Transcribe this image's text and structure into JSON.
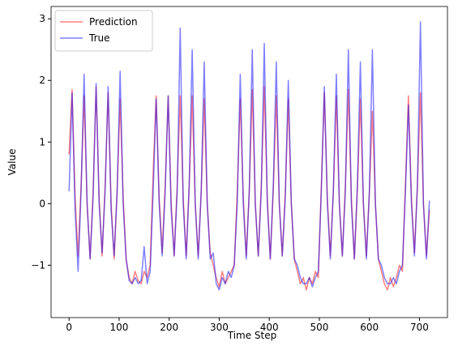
{
  "chart_data": {
    "type": "line",
    "xlabel": "Time Step",
    "ylabel": "Value",
    "x": [
      0,
      6,
      12,
      18,
      24,
      30,
      36,
      42,
      48,
      54,
      60,
      66,
      72,
      78,
      84,
      90,
      96,
      102,
      108,
      114,
      120,
      126,
      132,
      138,
      144,
      150,
      156,
      162,
      168,
      174,
      180,
      186,
      192,
      198,
      204,
      210,
      216,
      222,
      228,
      234,
      240,
      246,
      252,
      258,
      264,
      270,
      276,
      282,
      288,
      294,
      300,
      306,
      312,
      318,
      324,
      330,
      336,
      342,
      348,
      354,
      360,
      366,
      372,
      378,
      384,
      390,
      396,
      402,
      408,
      414,
      420,
      426,
      432,
      438,
      444,
      450,
      456,
      462,
      468,
      474,
      480,
      486,
      492,
      498,
      504,
      510,
      516,
      522,
      528,
      534,
      540,
      546,
      552,
      558,
      564,
      570,
      576,
      582,
      588,
      594,
      600,
      606,
      612,
      618,
      624,
      630,
      636,
      642,
      648,
      654,
      660,
      666,
      672,
      678,
      684,
      690,
      696,
      702,
      708,
      714,
      720
    ],
    "series": [
      {
        "name": "Prediction",
        "color": "#ff0000",
        "values": [
          0.8,
          1.85,
          0.1,
          -0.85,
          0.3,
          1.75,
          0.0,
          -0.9,
          0.2,
          1.9,
          0.1,
          -0.85,
          0.3,
          1.8,
          0.0,
          -0.9,
          0.2,
          1.7,
          0.1,
          -0.9,
          -1.2,
          -1.3,
          -1.1,
          -1.25,
          -1.3,
          -1.1,
          -1.2,
          -1.0,
          0.5,
          1.75,
          0.1,
          -0.8,
          0.3,
          1.75,
          0.0,
          -0.85,
          0.3,
          1.75,
          0.1,
          -0.85,
          0.3,
          1.75,
          0.0,
          -0.85,
          0.2,
          1.7,
          0.0,
          -0.8,
          -1.0,
          -1.2,
          -1.35,
          -1.1,
          -1.3,
          -1.2,
          -1.1,
          -1.0,
          0.2,
          1.7,
          0.1,
          -0.85,
          0.2,
          1.85,
          0.0,
          -0.85,
          0.3,
          1.9,
          0.1,
          -0.9,
          0.2,
          1.75,
          0.0,
          -0.85,
          0.2,
          1.7,
          0.0,
          -0.9,
          -1.1,
          -1.3,
          -1.2,
          -1.4,
          -1.2,
          -1.3,
          -1.1,
          -1.2,
          0.3,
          1.8,
          0.1,
          -0.85,
          0.2,
          1.75,
          0.0,
          -0.85,
          0.3,
          1.85,
          0.1,
          -0.9,
          0.2,
          1.7,
          0.0,
          -0.85,
          0.2,
          1.5,
          0.0,
          -0.9,
          -1.1,
          -1.3,
          -1.4,
          -1.2,
          -1.35,
          -1.2,
          -1.0,
          -1.1,
          0.3,
          1.75,
          0.1,
          -0.8,
          0.3,
          1.8,
          0.0,
          -0.85,
          -0.1
        ]
      },
      {
        "name": "True",
        "color": "#0000ff",
        "values": [
          0.2,
          1.8,
          -0.1,
          -1.1,
          0.2,
          2.1,
          0.0,
          -0.9,
          0.1,
          1.95,
          0.0,
          -0.8,
          0.2,
          1.9,
          -0.1,
          -0.85,
          0.2,
          2.15,
          0.0,
          -0.9,
          -1.25,
          -1.3,
          -1.2,
          -1.3,
          -1.25,
          -0.7,
          -1.3,
          -1.1,
          0.2,
          1.7,
          0.0,
          -0.85,
          0.2,
          1.75,
          -0.1,
          -0.85,
          0.2,
          2.85,
          0.0,
          -0.9,
          0.3,
          2.5,
          0.0,
          -0.9,
          0.2,
          2.3,
          0.0,
          -0.9,
          -0.8,
          -1.3,
          -1.4,
          -1.2,
          -1.3,
          -1.1,
          -1.2,
          -1.0,
          0.0,
          2.1,
          0.0,
          -0.9,
          0.2,
          2.5,
          0.0,
          -0.85,
          0.2,
          2.6,
          0.0,
          -0.9,
          0.3,
          2.3,
          0.0,
          -0.85,
          0.1,
          2.0,
          0.0,
          -0.9,
          -1.0,
          -1.2,
          -1.3,
          -1.3,
          -1.2,
          -1.35,
          -1.2,
          -1.1,
          0.2,
          1.9,
          0.0,
          -0.9,
          0.2,
          2.1,
          0.0,
          -0.85,
          0.2,
          2.5,
          0.0,
          -0.9,
          0.3,
          2.3,
          0.0,
          -0.9,
          0.2,
          2.5,
          0.0,
          -0.9,
          -1.0,
          -1.2,
          -1.3,
          -1.3,
          -1.2,
          -1.3,
          -1.1,
          -1.0,
          0.2,
          1.6,
          0.0,
          -0.85,
          0.3,
          2.95,
          0.0,
          -0.9,
          0.05
        ]
      }
    ],
    "xlim": [
      -36,
      756
    ],
    "xticks": [
      0,
      100,
      200,
      300,
      400,
      500,
      600,
      700
    ],
    "ylim": [
      -1.85,
      3.2
    ],
    "yticks": [
      {
        "value": -1,
        "label": "−1"
      },
      0,
      1,
      2,
      3
    ],
    "line_alpha": 0.5,
    "legend": "upper left",
    "grid": false
  }
}
